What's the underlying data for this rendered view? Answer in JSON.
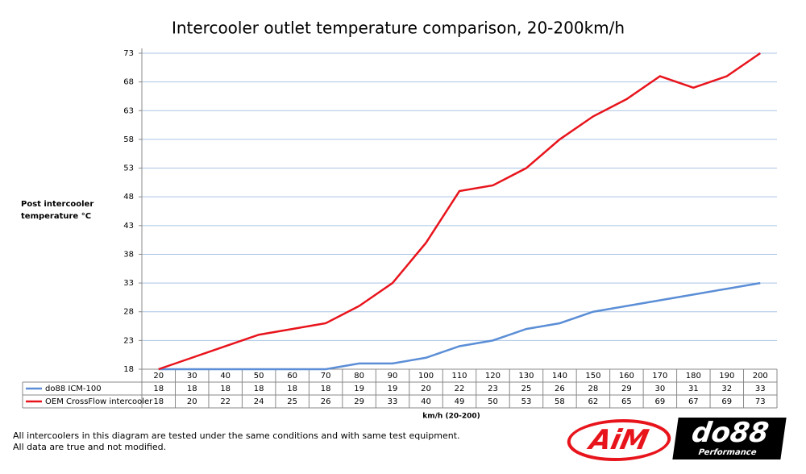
{
  "chart_data": {
    "type": "line",
    "title": "Intercooler outlet temperature comparison, 20-200km/h",
    "y_label": "Post intercooler temperature °C",
    "x_label": "km/h (20-200)",
    "categories": [
      "20",
      "30",
      "40",
      "50",
      "60",
      "70",
      "80",
      "90",
      "100",
      "110",
      "120",
      "130",
      "140",
      "150",
      "160",
      "170",
      "180",
      "190",
      "200"
    ],
    "series": [
      {
        "name": "do88 ICM-100",
        "color": "#5b8ed6",
        "values": [
          18,
          18,
          18,
          18,
          18,
          18,
          19,
          19,
          20,
          22,
          23,
          25,
          26,
          28,
          29,
          30,
          31,
          32,
          33
        ]
      },
      {
        "name": "OEM CrossFlow intercooler",
        "color": "#e8141c",
        "values": [
          18,
          20,
          22,
          24,
          25,
          26,
          29,
          33,
          40,
          49,
          50,
          53,
          58,
          62,
          65,
          69,
          67,
          69,
          73
        ]
      }
    ],
    "ylim": [
      18,
      73
    ],
    "yticks": [
      18,
      23,
      28,
      33,
      38,
      43,
      48,
      53,
      58,
      63,
      68,
      73
    ],
    "grid": true
  },
  "footer": [
    "All intercoolers in this diagram are tested under the same conditions and with same test equipment.",
    "All data are true and not modified."
  ],
  "logos": {
    "aim": "AiM",
    "do88": "do88",
    "do88_sub": "Performance"
  }
}
